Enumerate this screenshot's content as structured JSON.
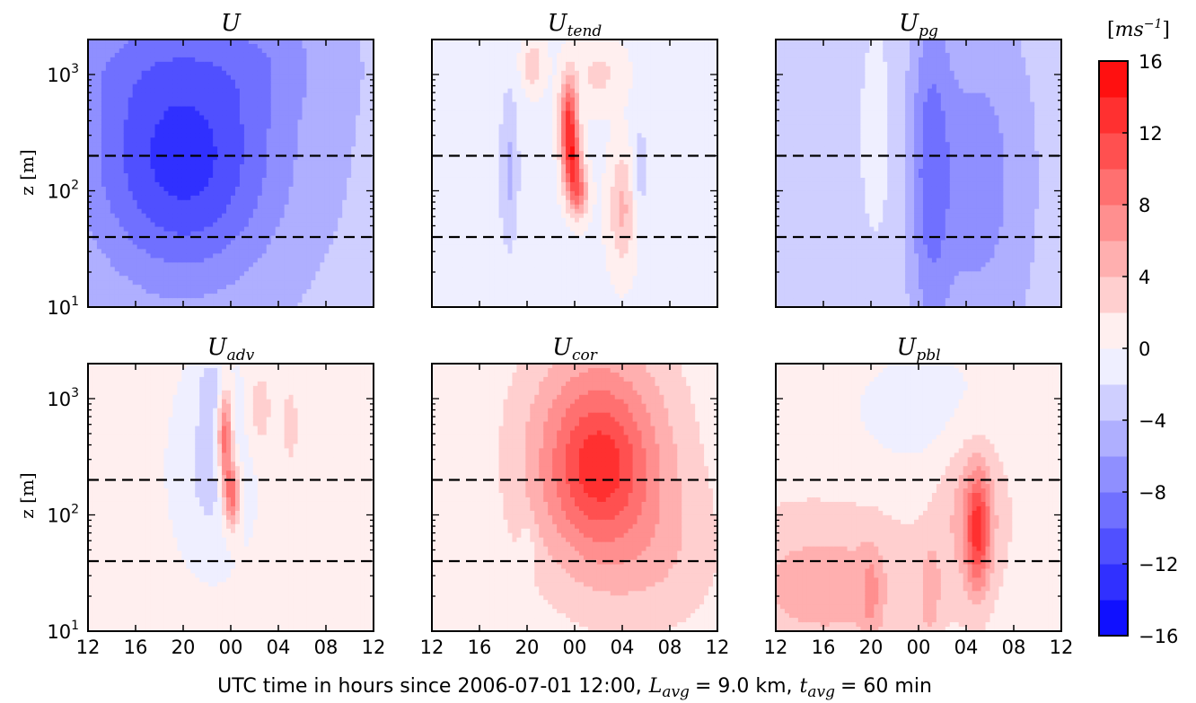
{
  "chart_data": {
    "type": "heatmap",
    "xlabel_prefix": "UTC time in hours since 2006-07-01 12:00,",
    "xlabel_lavg_sym": "L",
    "xlabel_lavg_sub": "avg",
    "xlabel_lavg_val": "= 9.0 km,",
    "xlabel_tavg_sym": "t",
    "xlabel_tavg_sub": "avg",
    "xlabel_tavg_val": "= 60 min",
    "ylabel": "z [m]",
    "x_ticks": [
      "12",
      "16",
      "20",
      "00",
      "04",
      "08",
      "12"
    ],
    "x_range_hours": [
      0,
      24
    ],
    "y_scale": "log",
    "y_range_m": [
      10,
      2000
    ],
    "y_ticks": [
      {
        "base": "10",
        "exp": "1",
        "value": 10
      },
      {
        "base": "10",
        "exp": "2",
        "value": 100
      },
      {
        "base": "10",
        "exp": "3",
        "value": 1000
      }
    ],
    "reference_heights_m": [
      40,
      200
    ],
    "colorbar": {
      "label_unit": "ms",
      "label_exp": "−1",
      "ticks": [
        "16",
        "12",
        "8",
        "4",
        "0",
        "−4",
        "−8",
        "−12",
        "−16"
      ],
      "range": [
        -16,
        16
      ],
      "level_step": 2,
      "colormap": "bwr",
      "low_color": "#0000ff",
      "mid_color": "#ffffff",
      "high_color": "#ff0000"
    },
    "panels": [
      {
        "id": "U",
        "title": "U",
        "sub": "",
        "base": -3.5,
        "blobs": [
          [
            8,
            140,
            5.5,
            0.7,
            -8
          ],
          [
            8,
            500,
            7,
            0.6,
            -2
          ],
          [
            4,
            1500,
            6,
            0.35,
            -2
          ],
          [
            15,
            1500,
            4,
            0.35,
            -2
          ]
        ]
      },
      {
        "id": "Utend",
        "title": "U",
        "sub": "tend",
        "base": -0.5,
        "blobs": [
          [
            11.5,
            420,
            0.5,
            0.25,
            12
          ],
          [
            11.8,
            180,
            0.55,
            0.2,
            10
          ],
          [
            12.3,
            95,
            0.6,
            0.15,
            8
          ],
          [
            16,
            70,
            0.8,
            0.35,
            5
          ],
          [
            8.5,
            1200,
            0.7,
            0.15,
            4
          ],
          [
            6.5,
            150,
            0.6,
            0.5,
            -4
          ],
          [
            14,
            1000,
            1.5,
            0.2,
            3
          ],
          [
            17.5,
            150,
            0.5,
            0.3,
            -3
          ]
        ]
      },
      {
        "id": "Upg",
        "title": "U",
        "sub": "pg",
        "base": -3.0,
        "blobs": [
          [
            13,
            150,
            1.2,
            1.0,
            -5
          ],
          [
            17,
            120,
            3,
            1.0,
            -4
          ],
          [
            8.5,
            300,
            1.5,
            1.0,
            1.5
          ]
        ]
      },
      {
        "id": "Uadv",
        "title": "U",
        "sub": "adv",
        "base": 0.3,
        "blobs": [
          [
            11.5,
            480,
            0.45,
            0.3,
            11
          ],
          [
            12.1,
            150,
            0.5,
            0.2,
            10
          ],
          [
            10.5,
            250,
            1.8,
            0.45,
            -3.5
          ],
          [
            14.5,
            800,
            0.7,
            0.25,
            3
          ],
          [
            17,
            600,
            0.5,
            0.25,
            3
          ],
          [
            10.5,
            1200,
            1.0,
            0.2,
            -3
          ]
        ]
      },
      {
        "id": "Ucor",
        "title": "U",
        "sub": "cor",
        "base": 0.4,
        "blobs": [
          [
            14,
            300,
            4.5,
            0.75,
            9
          ],
          [
            14,
            250,
            2.5,
            0.4,
            4
          ],
          [
            8,
            50,
            0.4,
            0.15,
            -2.5
          ],
          [
            20,
            40,
            4,
            0.5,
            2
          ]
        ]
      },
      {
        "id": "Upbl",
        "title": "U",
        "sub": "pbl",
        "base": 1.0,
        "blobs": [
          [
            17,
            70,
            0.7,
            0.35,
            9
          ],
          [
            16.5,
            120,
            2,
            0.5,
            4
          ],
          [
            4,
            25,
            6,
            0.45,
            4
          ],
          [
            13,
            800,
            5,
            0.4,
            -2
          ],
          [
            8,
            20,
            0.6,
            0.3,
            3
          ],
          [
            13,
            20,
            0.6,
            0.3,
            3
          ]
        ]
      }
    ]
  }
}
